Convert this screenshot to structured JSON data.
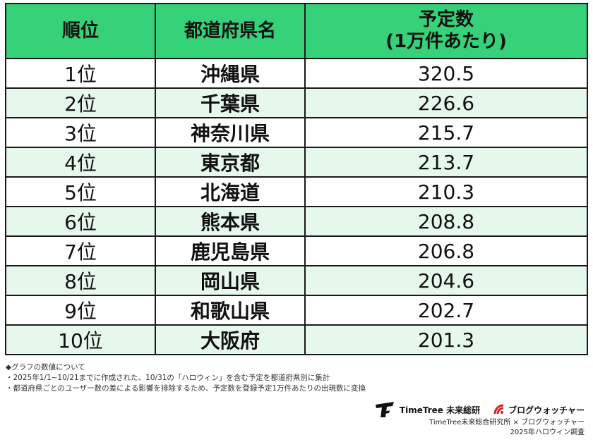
{
  "chart_data": {
    "type": "table",
    "columns": [
      "順位",
      "都道府県名",
      "予定数",
      "(1万件あたり)"
    ],
    "rows": [
      {
        "rank": "1位",
        "prefecture": "沖縄県",
        "value": "320.5"
      },
      {
        "rank": "2位",
        "prefecture": "千葉県",
        "value": "226.6"
      },
      {
        "rank": "3位",
        "prefecture": "神奈川県",
        "value": "215.7"
      },
      {
        "rank": "4位",
        "prefecture": "東京都",
        "value": "213.7"
      },
      {
        "rank": "5位",
        "prefecture": "北海道",
        "value": "210.3"
      },
      {
        "rank": "6位",
        "prefecture": "熊本県",
        "value": "208.8"
      },
      {
        "rank": "7位",
        "prefecture": "鹿児島県",
        "value": "206.8"
      },
      {
        "rank": "8位",
        "prefecture": "岡山県",
        "value": "204.6"
      },
      {
        "rank": "9位",
        "prefecture": "和歌山県",
        "value": "202.7"
      },
      {
        "rank": "10位",
        "prefecture": "大阪府",
        "value": "201.3"
      }
    ],
    "colors": {
      "header": "#35d27a",
      "row_alt": "#e6f7ec",
      "row": "#ffffff",
      "border": "#1a1a1a"
    }
  },
  "notes": [
    "◆グラフの数値について",
    "・2025年1/1~10/21までに作成された、10/31の「ハロウィン」を含む予定を都道府県別に集計",
    "・都道府県ごとのユーザー数の差による影響を排除するため、予定数を登録予定1万件あたりの出現数に変換"
  ],
  "logos": {
    "timetree": "TimeTree 未来総研",
    "blog": "ブログウォッチャー"
  },
  "credits": {
    "line1": "TimeTree未来総合研究所 × ブログウォッチャー",
    "line2": "2025年ハロウィン調査"
  }
}
